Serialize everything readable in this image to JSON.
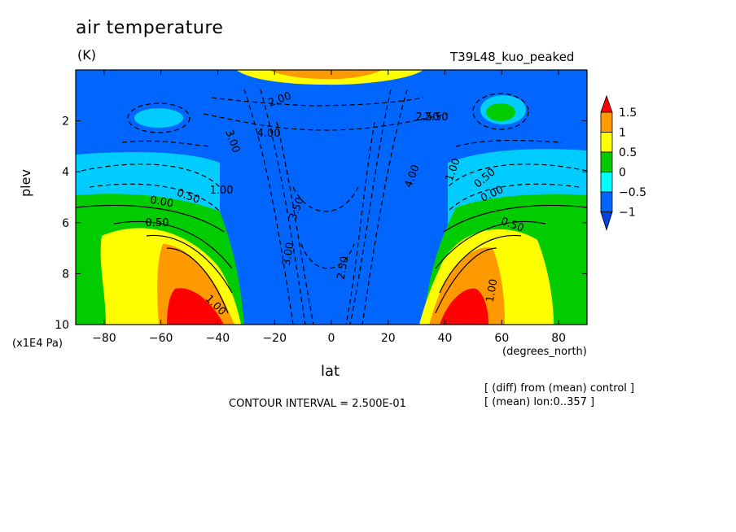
{
  "chart_data": {
    "type": "heatmap",
    "title": "air temperature",
    "units": "(K)",
    "run_name": "T39L48_kuo_peaked",
    "xlabel": "lat",
    "x_units": "(degrees_north)",
    "ylabel": "plev",
    "y_units": "(x1E4 Pa)",
    "xlim": [
      -90,
      90
    ],
    "ylim": [
      10,
      0
    ],
    "x_ticks": [
      -80,
      -60,
      -40,
      -20,
      0,
      20,
      40,
      60,
      80
    ],
    "y_ticks": [
      2,
      4,
      6,
      8,
      10
    ],
    "colorbar": {
      "levels": [
        "1.5",
        "1",
        "0.5",
        "0",
        "-0.5",
        "-1"
      ],
      "colors": [
        "#ff0000",
        "#ff9900",
        "#ffff00",
        "#00cc00",
        "#00ffff",
        "#0066ff",
        "#0044dd"
      ]
    },
    "contour_labels": [
      "2.50",
      "2.00",
      "4.00",
      "3.00",
      "1.00",
      "0.50",
      "0.00",
      "0.50",
      "1.00",
      "3.50",
      "3.00",
      "2.50",
      "4.00",
      "1.00",
      "2.50",
      "0.50",
      "0.00",
      "0.50",
      "1.00"
    ],
    "contour_interval_text": "CONTOUR INTERVAL = 2.500E-01",
    "notes": [
      "[ (diff) from (mean) control ]",
      "[ (mean) lon:0..357 ]"
    ],
    "fields": [
      {
        "name": "lowlevel-warm-lobe-south",
        "lat": -52,
        "plev": 10,
        "max": 1.5
      },
      {
        "name": "lowlevel-warm-lobe-north",
        "lat": 48,
        "plev": 10,
        "max": 1.5
      },
      {
        "name": "tropical-cold-core",
        "lat": 0,
        "plev": 4,
        "min": -4.0
      }
    ]
  }
}
